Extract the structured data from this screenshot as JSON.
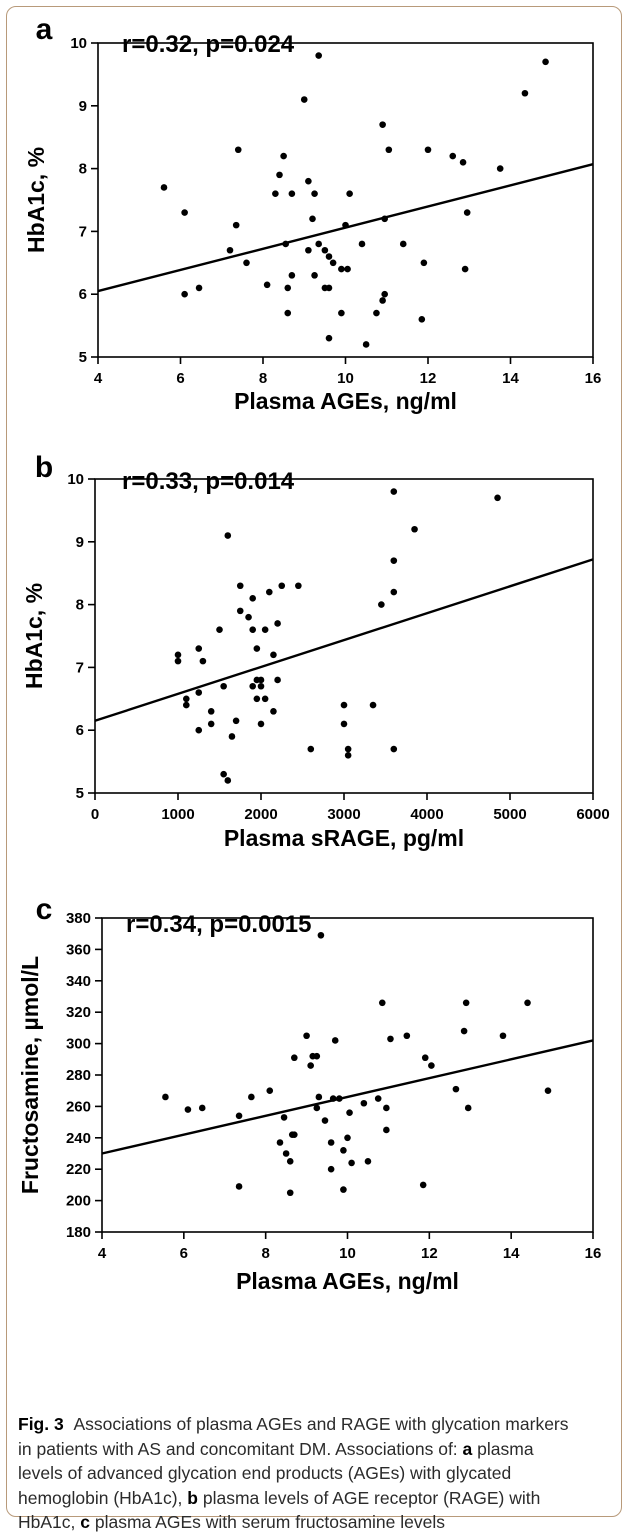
{
  "chart_data": [
    {
      "type": "scatter",
      "panel_label": "a",
      "annotation": "r=0.32, p=0.024",
      "xlabel": "Plasma AGEs, ng/ml",
      "ylabel": "HbA1c, %",
      "xlim": [
        4,
        16
      ],
      "ylim": [
        5,
        10
      ],
      "xticks": [
        4,
        6,
        8,
        10,
        12,
        14,
        16
      ],
      "yticks": [
        5,
        6,
        7,
        8,
        9,
        10
      ],
      "trendline": [
        [
          4,
          6.05
        ],
        [
          16,
          8.07
        ]
      ],
      "points": [
        [
          5.6,
          7.7
        ],
        [
          6.1,
          6.0
        ],
        [
          6.1,
          7.3
        ],
        [
          6.45,
          6.1
        ],
        [
          7.2,
          6.7
        ],
        [
          7.35,
          7.1
        ],
        [
          7.4,
          8.3
        ],
        [
          7.6,
          6.5
        ],
        [
          8.1,
          6.15
        ],
        [
          8.3,
          7.6
        ],
        [
          8.4,
          7.9
        ],
        [
          8.5,
          8.2
        ],
        [
          8.55,
          6.8
        ],
        [
          8.6,
          5.7
        ],
        [
          8.6,
          6.1
        ],
        [
          8.7,
          6.3
        ],
        [
          8.7,
          7.6
        ],
        [
          9.0,
          9.1
        ],
        [
          9.1,
          7.8
        ],
        [
          9.1,
          6.7
        ],
        [
          9.2,
          7.2
        ],
        [
          9.25,
          7.6
        ],
        [
          9.25,
          6.3
        ],
        [
          9.35,
          9.8
        ],
        [
          9.35,
          6.8
        ],
        [
          9.5,
          6.1
        ],
        [
          9.5,
          6.7
        ],
        [
          9.6,
          6.6
        ],
        [
          9.6,
          6.1
        ],
        [
          9.6,
          5.3
        ],
        [
          9.7,
          6.5
        ],
        [
          9.9,
          6.4
        ],
        [
          9.9,
          5.7
        ],
        [
          10.0,
          7.1
        ],
        [
          10.05,
          6.4
        ],
        [
          10.1,
          7.6
        ],
        [
          10.4,
          6.8
        ],
        [
          10.5,
          5.2
        ],
        [
          10.75,
          5.7
        ],
        [
          10.9,
          8.7
        ],
        [
          10.9,
          5.9
        ],
        [
          10.95,
          6.0
        ],
        [
          10.95,
          7.2
        ],
        [
          11.05,
          8.3
        ],
        [
          11.4,
          6.8
        ],
        [
          11.85,
          5.6
        ],
        [
          11.9,
          6.5
        ],
        [
          12.0,
          8.3
        ],
        [
          12.6,
          8.2
        ],
        [
          12.85,
          8.1
        ],
        [
          12.9,
          6.4
        ],
        [
          12.95,
          7.3
        ],
        [
          13.75,
          8.0
        ],
        [
          14.35,
          9.2
        ],
        [
          14.85,
          9.7
        ]
      ]
    },
    {
      "type": "scatter",
      "panel_label": "b",
      "annotation": "r=0.33, p=0.014",
      "xlabel": "Plasma sRAGE, pg/ml",
      "ylabel": "HbA1c, %",
      "xlim": [
        0,
        6000
      ],
      "ylim": [
        5,
        10
      ],
      "xticks": [
        0,
        1000,
        2000,
        3000,
        4000,
        5000,
        6000
      ],
      "yticks": [
        5,
        6,
        7,
        8,
        9,
        10
      ],
      "trendline": [
        [
          0,
          6.15
        ],
        [
          6000,
          8.72
        ]
      ],
      "points": [
        [
          1000,
          7.1
        ],
        [
          1000,
          7.2
        ],
        [
          1100,
          6.4
        ],
        [
          1100,
          6.5
        ],
        [
          1250,
          6.0
        ],
        [
          1250,
          6.6
        ],
        [
          1250,
          7.3
        ],
        [
          1300,
          7.1
        ],
        [
          1400,
          6.3
        ],
        [
          1400,
          6.1
        ],
        [
          1500,
          7.6
        ],
        [
          1550,
          6.7
        ],
        [
          1550,
          5.3
        ],
        [
          1600,
          5.2
        ],
        [
          1600,
          9.1
        ],
        [
          1650,
          5.9
        ],
        [
          1700,
          6.15
        ],
        [
          1750,
          7.9
        ],
        [
          1750,
          8.3
        ],
        [
          1850,
          7.8
        ],
        [
          1900,
          6.7
        ],
        [
          1900,
          7.6
        ],
        [
          1900,
          8.1
        ],
        [
          1950,
          6.5
        ],
        [
          1950,
          7.3
        ],
        [
          1950,
          6.8
        ],
        [
          2000,
          6.7
        ],
        [
          2000,
          6.1
        ],
        [
          2000,
          6.8
        ],
        [
          2050,
          6.5
        ],
        [
          2050,
          7.6
        ],
        [
          2100,
          8.2
        ],
        [
          2150,
          6.3
        ],
        [
          2150,
          7.2
        ],
        [
          2200,
          7.7
        ],
        [
          2200,
          6.8
        ],
        [
          2250,
          8.3
        ],
        [
          2450,
          8.3
        ],
        [
          2600,
          5.7
        ],
        [
          3000,
          6.4
        ],
        [
          3000,
          6.1
        ],
        [
          3050,
          5.7
        ],
        [
          3050,
          5.6
        ],
        [
          3350,
          6.4
        ],
        [
          3450,
          8.0
        ],
        [
          3600,
          9.8
        ],
        [
          3600,
          8.7
        ],
        [
          3600,
          8.2
        ],
        [
          3600,
          5.7
        ],
        [
          3850,
          9.2
        ],
        [
          4850,
          9.7
        ]
      ]
    },
    {
      "type": "scatter",
      "panel_label": "c",
      "annotation": "r=0.34, p=0.0015",
      "xlabel": "Plasma AGEs, ng/ml",
      "ylabel": "Fructosamine, µmol/L",
      "xlim": [
        4,
        16
      ],
      "ylim": [
        180,
        380
      ],
      "xticks": [
        4,
        6,
        8,
        10,
        12,
        14,
        16
      ],
      "yticks": [
        180,
        200,
        220,
        240,
        260,
        280,
        300,
        320,
        340,
        360,
        380
      ],
      "trendline": [
        [
          4,
          230
        ],
        [
          16,
          302
        ]
      ],
      "points": [
        [
          5.55,
          266
        ],
        [
          6.1,
          258
        ],
        [
          6.45,
          259
        ],
        [
          7.35,
          254
        ],
        [
          7.35,
          209
        ],
        [
          7.65,
          266
        ],
        [
          8.1,
          270
        ],
        [
          8.35,
          237
        ],
        [
          8.45,
          253
        ],
        [
          8.5,
          230
        ],
        [
          8.6,
          225
        ],
        [
          8.6,
          205
        ],
        [
          8.65,
          242
        ],
        [
          8.7,
          242
        ],
        [
          8.7,
          291
        ],
        [
          9.0,
          305
        ],
        [
          9.1,
          286
        ],
        [
          9.15,
          292
        ],
        [
          9.25,
          292
        ],
        [
          9.25,
          259
        ],
        [
          9.3,
          266
        ],
        [
          9.35,
          369
        ],
        [
          9.45,
          251
        ],
        [
          9.6,
          237
        ],
        [
          9.6,
          220
        ],
        [
          9.65,
          265
        ],
        [
          9.7,
          302
        ],
        [
          9.8,
          265
        ],
        [
          9.9,
          232
        ],
        [
          9.9,
          207
        ],
        [
          10.0,
          240
        ],
        [
          10.05,
          256
        ],
        [
          10.1,
          224
        ],
        [
          10.4,
          262
        ],
        [
          10.5,
          225
        ],
        [
          10.75,
          265
        ],
        [
          10.85,
          326
        ],
        [
          10.95,
          259
        ],
        [
          10.95,
          245
        ],
        [
          11.05,
          303
        ],
        [
          11.45,
          305
        ],
        [
          11.85,
          210
        ],
        [
          11.9,
          291
        ],
        [
          12.05,
          286
        ],
        [
          12.65,
          271
        ],
        [
          12.85,
          308
        ],
        [
          12.9,
          326
        ],
        [
          12.95,
          259
        ],
        [
          13.8,
          305
        ],
        [
          14.4,
          326
        ],
        [
          14.9,
          270
        ]
      ]
    }
  ],
  "caption": {
    "fig_label": "Fig. 3",
    "line1": "Associations of plasma AGEs and RAGE with glycation markers",
    "line2": "in patients with AS and concomitant DM. Associations of:",
    "line2_label": "a",
    "line2_tail": "plasma",
    "line3": "levels of advanced glycation end products (AGEs) with glycated",
    "line4_head": "hemoglobin (HbA1c),",
    "line4_label": "b",
    "line4_tail": "plasma levels of AGE receptor (RAGE) with",
    "line5_head": "HbA1c,",
    "line5_label": "c",
    "line5_tail": "plasma AGEs with serum fructosamine levels"
  },
  "colors": {
    "ink": "#000000",
    "frame": "#b89a7a",
    "caption_text": "#2b2b2b"
  }
}
